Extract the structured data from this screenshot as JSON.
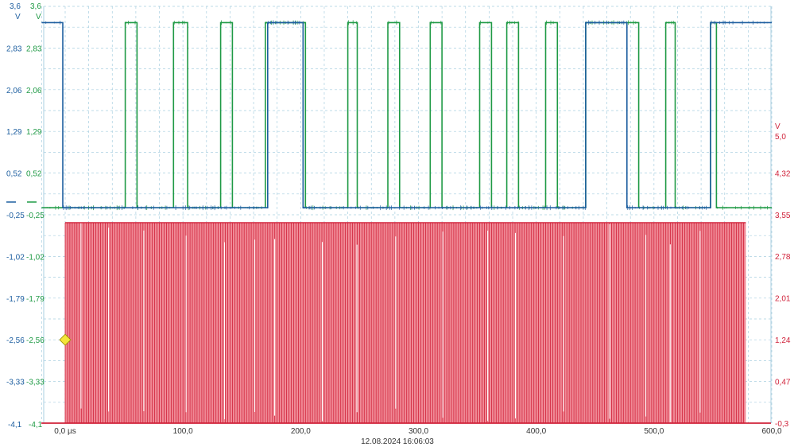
{
  "timestamp": "12.08.2024 16:06:03",
  "colors": {
    "blue": "#1e5fa0",
    "green": "#1f9a45",
    "red": "#d0223a",
    "red_fill": "#f08a96",
    "grid": "#a9cfe0",
    "marker": "#f4e53a"
  },
  "chart_data": {
    "type": "line",
    "x_unit": "µs",
    "x_axis_labels": [
      "0,0 µs",
      "100,0",
      "200,0",
      "300,0",
      "400,0",
      "500,0",
      "600,0"
    ],
    "x_axis_values": [
      0,
      100,
      200,
      300,
      400,
      500,
      600
    ],
    "xlim": [
      -20,
      600
    ],
    "grid": true,
    "left_axis_blue": {
      "unit": "V",
      "top_label": "3,6",
      "bottom_label": "-4,1",
      "tick_labels": [
        "2,83",
        "2,06",
        "1,29",
        "0,52",
        "-0,25",
        "-1,02",
        "-1,79",
        "-2,56",
        "-3,33"
      ],
      "ylim": [
        -4.1,
        3.6
      ]
    },
    "left_axis_green": {
      "unit": "V",
      "top_label": "3,6",
      "bottom_label": "-4,1",
      "tick_labels": [
        "2,83",
        "2,06",
        "1,29",
        "0,52",
        "-0,25",
        "-1,02",
        "-1,79",
        "-2,56",
        "-3,33"
      ],
      "ylim": [
        -4.1,
        3.6
      ]
    },
    "right_axis_red": {
      "unit": "V",
      "tick_labels": [
        "5,0",
        "4,32",
        "3,55",
        "2,78",
        "2,01",
        "1,24",
        "0,47",
        "-0,3"
      ],
      "tick_values": [
        5.0,
        4.32,
        3.55,
        2.78,
        2.01,
        1.24,
        0.47,
        -0.3
      ]
    },
    "series": [
      {
        "color": "blue",
        "axis": "left",
        "low": -0.12,
        "high": 3.3,
        "initial_level": "high",
        "transitions_us": [
          -2,
          172,
          202,
          442,
          477,
          548
        ]
      },
      {
        "color": "green",
        "axis": "left",
        "low": -0.12,
        "high": 3.3,
        "initial_level": "low",
        "transitions_us": [
          51,
          61,
          92,
          104,
          132,
          142,
          170,
          204,
          240,
          248,
          274,
          284,
          310,
          320,
          352,
          362,
          375,
          385,
          408,
          418,
          442,
          487,
          510,
          518,
          548,
          553
        ]
      },
      {
        "color": "red",
        "axis": "right",
        "low": -0.3,
        "high": 3.4,
        "burst_start_us": 0,
        "burst_end_us": 578,
        "cycles_per_us": 0.5
      }
    ],
    "trigger_marker_level_left": -2.56
  }
}
